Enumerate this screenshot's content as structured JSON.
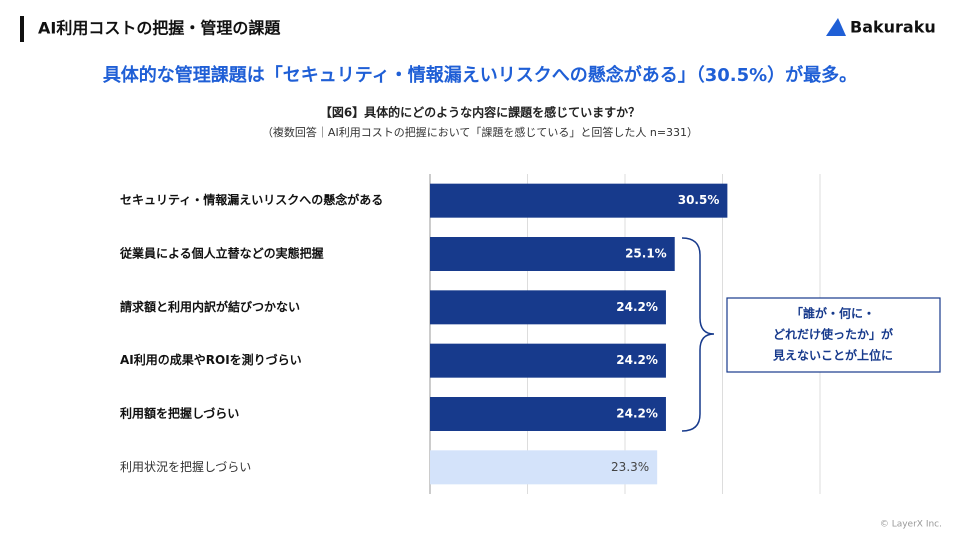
{
  "header": {
    "title": "AI利用コストの把握・管理の課題",
    "logo": "Bakuraku"
  },
  "headline": "具体的な管理課題は「セキュリティ・情報漏えいリスクへの懸念がある」（30.5%）が最多。",
  "chart_data": {
    "type": "bar",
    "orientation": "horizontal",
    "title": "【図6】具体的にどのような内容に課題を感じていますか？",
    "subtitle": "（複数回答｜AI利用コストの把握において「課題を感じている」と回答した人 n=331）",
    "categories": [
      "セキュリティ・情報漏えいリスクへの懸念がある",
      "従業員による個人立替などの実態把握",
      "請求額と利用内訳が結びつかない",
      "AI利用の成果やROIを測りづらい",
      "利用額を把握しづらい",
      "利用状況を把握しづらい"
    ],
    "values": [
      30.5,
      25.1,
      24.2,
      24.2,
      24.2,
      23.3
    ],
    "value_labels": [
      "30.5%",
      "25.1%",
      "24.2%",
      "24.2%",
      "24.2%",
      "23.3%"
    ],
    "colors": [
      "#173a8c",
      "#173a8c",
      "#173a8c",
      "#173a8c",
      "#173a8c",
      "#d4e3fa"
    ],
    "xlim": [
      0,
      40
    ],
    "xticks": [
      0,
      10,
      20,
      30,
      40
    ],
    "grid": true,
    "annotation": [
      "「誰が・何に・",
      "どれだけ使ったか」が",
      "見えないことが上位に"
    ]
  },
  "footer": "© LayerX Inc."
}
